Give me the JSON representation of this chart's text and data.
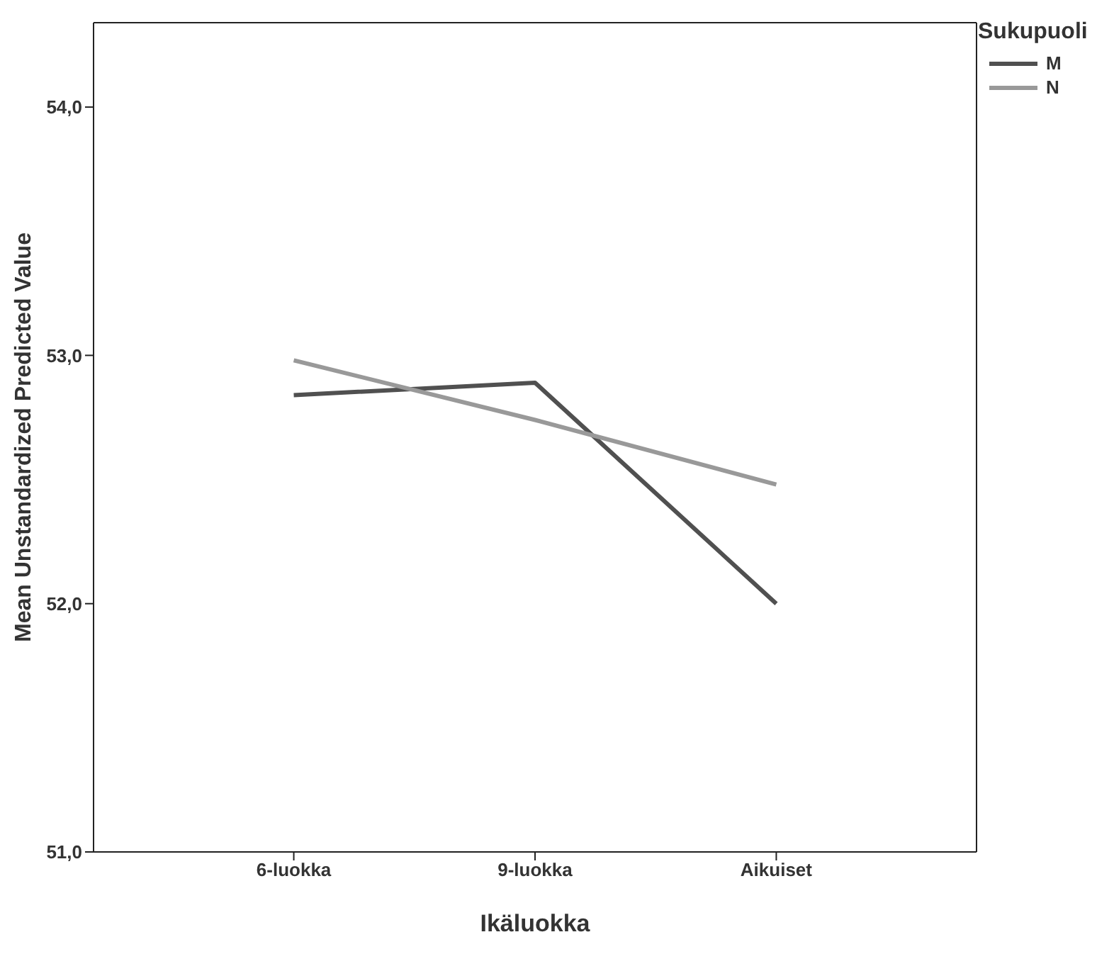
{
  "chart_data": {
    "type": "line",
    "xlabel": "Ikäluokka",
    "ylabel": "Mean Unstandardized Predicted Value",
    "legend_title": "Sukupuoli",
    "legend": "top right",
    "grid": false,
    "marker": "none",
    "line_style": "solid",
    "categories": [
      "6-luokka",
      "9-luokka",
      "Aikuiset"
    ],
    "ylim": [
      51,
      54.34
    ],
    "yticks": [
      {
        "value": 51,
        "label": "51,0"
      },
      {
        "value": 52,
        "label": "52,0"
      },
      {
        "value": 53,
        "label": "53,0"
      },
      {
        "value": 54,
        "label": "54,0"
      }
    ],
    "series": [
      {
        "name": "M",
        "color": "#505050",
        "values": [
          52.84,
          52.89,
          52.0
        ]
      },
      {
        "name": "N",
        "color": "#999999",
        "values": [
          52.98,
          52.74,
          52.48
        ]
      }
    ]
  }
}
